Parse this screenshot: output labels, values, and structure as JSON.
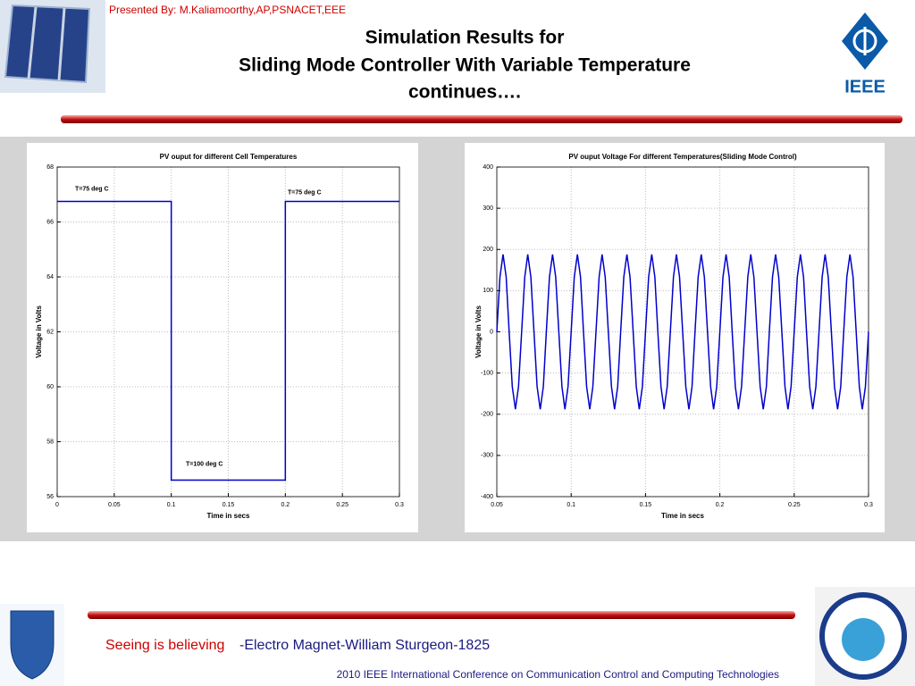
{
  "header": {
    "presenter": "Presented By: M.Kaliamoorthy,AP,PSNACET,EEE",
    "title_lines": [
      "Simulation Results for",
      "Sliding Mode Controller With Variable Temperature",
      "continues…."
    ],
    "logo_text": "IEEE"
  },
  "chart_data": [
    {
      "type": "line",
      "title": "PV ouput for different Cell Temperatures",
      "xlabel": "Time in secs",
      "ylabel": "Voltage in Volts",
      "x": [
        0,
        0.1,
        0.1,
        0.2,
        0.2,
        0.3
      ],
      "series": [
        {
          "color": "#0000cc",
          "values": [
            66.75,
            66.75,
            56.6,
            56.6,
            66.75,
            66.75
          ]
        }
      ],
      "annotations": [
        "T=75 deg C",
        "T=100 deg C",
        "T=75 deg C"
      ],
      "xlim": [
        0,
        0.3
      ],
      "ylim": [
        56,
        68
      ],
      "xticks": [
        0,
        0.05,
        0.1,
        0.15,
        0.2,
        0.25,
        0.3
      ],
      "yticks": [
        56,
        58,
        60,
        62,
        64,
        66,
        68
      ],
      "grid": true
    },
    {
      "type": "line",
      "title": "PV ouput Voltage For different Temperatures(Sliding Mode Control)",
      "xlabel": "Time in secs",
      "ylabel": "Voltage in Volts",
      "x": [
        0.05,
        0.0521,
        0.0542,
        0.0563,
        0.0583,
        0.0604,
        0.0625,
        0.0646,
        0.0667,
        0.0688,
        0.0708,
        0.0729,
        0.075,
        0.0771,
        0.0792,
        0.0813,
        0.0833,
        0.0854,
        0.0875,
        0.0896,
        0.0917,
        0.0938,
        0.0958,
        0.0979,
        0.1,
        0.1021,
        0.1042,
        0.1063,
        0.1083,
        0.1104,
        0.1125,
        0.1146,
        0.1167,
        0.1188,
        0.1208,
        0.1229,
        0.125,
        0.1271,
        0.1292,
        0.1313,
        0.1333,
        0.1354,
        0.1375,
        0.1396,
        0.1417,
        0.1438,
        0.1458,
        0.1479,
        0.15,
        0.1521,
        0.1542,
        0.1563,
        0.1583,
        0.1604,
        0.1625,
        0.1646,
        0.1667,
        0.1688,
        0.1708,
        0.1729,
        0.175,
        0.1771,
        0.1792,
        0.1813,
        0.1833,
        0.1854,
        0.1875,
        0.1896,
        0.1917,
        0.1938,
        0.1958,
        0.1979,
        0.2,
        0.2021,
        0.2042,
        0.2063,
        0.2083,
        0.2104,
        0.2125,
        0.2146,
        0.2167,
        0.2188,
        0.2208,
        0.2229,
        0.225,
        0.2271,
        0.2292,
        0.2313,
        0.2333,
        0.2354,
        0.2375,
        0.2396,
        0.2417,
        0.2438,
        0.2458,
        0.2479,
        0.25,
        0.2521,
        0.2542,
        0.2563,
        0.2583,
        0.2604,
        0.2625,
        0.2646,
        0.2667,
        0.2688,
        0.2708,
        0.2729,
        0.275,
        0.2771,
        0.2792,
        0.2813,
        0.2833,
        0.2854,
        0.2875,
        0.2896,
        0.2917,
        0.2938,
        0.2958,
        0.2979,
        0.3
      ],
      "series": [
        {
          "color": "#0000cc",
          "values": [
            0,
            133,
            188,
            133,
            0,
            -133,
            -188,
            -133,
            0,
            133,
            188,
            133,
            0,
            -133,
            -188,
            -133,
            0,
            133,
            188,
            133,
            0,
            -133,
            -188,
            -133,
            0,
            133,
            188,
            133,
            0,
            -133,
            -188,
            -133,
            0,
            133,
            188,
            133,
            0,
            -133,
            -188,
            -133,
            0,
            133,
            188,
            133,
            0,
            -133,
            -188,
            -133,
            0,
            133,
            188,
            133,
            0,
            -133,
            -188,
            -133,
            0,
            133,
            188,
            133,
            0,
            -133,
            -188,
            -133,
            0,
            133,
            188,
            133,
            0,
            -133,
            -188,
            -133,
            0,
            133,
            188,
            133,
            0,
            -133,
            -188,
            -133,
            0,
            133,
            188,
            133,
            0,
            -133,
            -188,
            -133,
            0,
            133,
            188,
            133,
            0,
            -133,
            -188,
            -133,
            0,
            133,
            188,
            133,
            0,
            -133,
            -188,
            -133,
            0,
            133,
            188,
            133,
            0,
            -133,
            -188,
            -133,
            0,
            133,
            188,
            133,
            0,
            -133,
            -188,
            -133,
            0
          ]
        }
      ],
      "xlim": [
        0.05,
        0.3
      ],
      "ylim": [
        -400,
        400
      ],
      "xticks": [
        0.05,
        0.1,
        0.15,
        0.2,
        0.25,
        0.3
      ],
      "yticks": [
        -400,
        -300,
        -200,
        -100,
        0,
        100,
        200,
        300,
        400
      ],
      "grid": true
    }
  ],
  "footer": {
    "quote": "Seeing is believing",
    "attribution": "-Electro Magnet-William Sturgeon-1825",
    "conference": "2010 IEEE International Conference on Communication Control and Computing Technologies"
  }
}
